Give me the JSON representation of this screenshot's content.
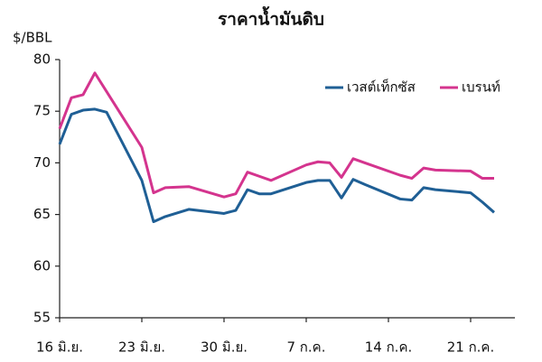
{
  "chart_data": {
    "type": "line",
    "title": "ราคาน้ำมันดิบ",
    "y_label": "$/BBL",
    "x": [
      0,
      1,
      2,
      3,
      4,
      7,
      8,
      9,
      11,
      14,
      15,
      16,
      17,
      18,
      21,
      22,
      23,
      24,
      25,
      26,
      29,
      30,
      31,
      32,
      35,
      36,
      37
    ],
    "xlim": [
      0,
      38.77
    ],
    "xticks": [
      {
        "value": 0,
        "label": "16 มิ.ย."
      },
      {
        "value": 7,
        "label": "23 มิ.ย."
      },
      {
        "value": 14,
        "label": "30 มิ.ย."
      },
      {
        "value": 21,
        "label": "7 ก.ค."
      },
      {
        "value": 28,
        "label": "14 ก.ค."
      },
      {
        "value": 35,
        "label": "21 ก.ค."
      }
    ],
    "ylim": [
      55,
      80
    ],
    "yticks": [
      55,
      60,
      65,
      70,
      75,
      80
    ],
    "legend": "top-right",
    "series": [
      {
        "name": "เวสต์เท็กซัส",
        "color": "#1f5f95",
        "values": [
          71.8,
          74.7,
          75.1,
          75.2,
          74.9,
          68.3,
          64.3,
          64.8,
          65.5,
          65.1,
          65.4,
          67.4,
          67.0,
          67.0,
          68.1,
          68.3,
          68.3,
          66.6,
          68.4,
          67.9,
          66.5,
          66.4,
          67.6,
          67.4,
          67.1,
          66.2,
          65.2
        ]
      },
      {
        "name": "เบรนท์",
        "color": "#d4348e",
        "values": [
          73.3,
          76.3,
          76.6,
          78.7,
          76.9,
          71.5,
          67.1,
          67.6,
          67.7,
          66.7,
          67.0,
          69.1,
          68.7,
          68.3,
          69.8,
          70.1,
          70.0,
          68.6,
          70.4,
          70.0,
          68.8,
          68.5,
          69.5,
          69.3,
          69.2,
          68.5,
          68.5
        ]
      }
    ]
  }
}
